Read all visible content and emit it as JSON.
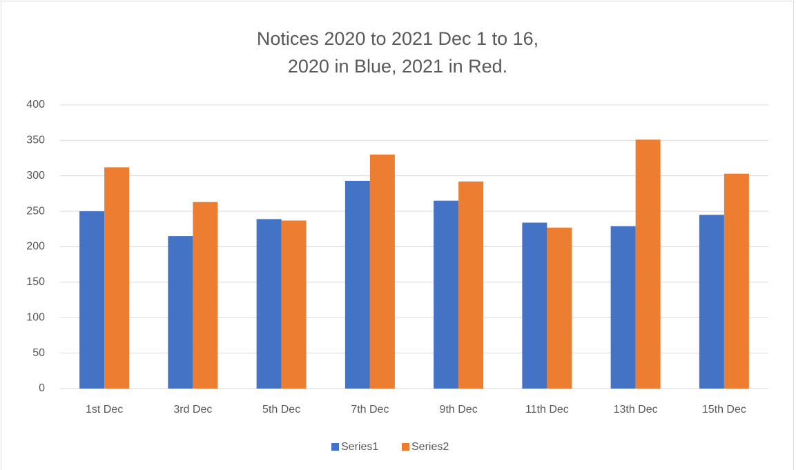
{
  "chart_data": {
    "type": "bar",
    "title": [
      "Notices 2020 to 2021 Dec 1 to 16,",
      "2020 in Blue, 2021 in Red."
    ],
    "categories": [
      "1st Dec",
      "3rd Dec",
      "5th Dec",
      "7th Dec",
      "9th Dec",
      "11th Dec",
      "13th Dec",
      "15th Dec"
    ],
    "series": [
      {
        "name": "Series1",
        "color": "#4472c4",
        "values": [
          250,
          215,
          239,
          293,
          265,
          234,
          229,
          245
        ]
      },
      {
        "name": "Series2",
        "color": "#ed7d31",
        "values": [
          312,
          263,
          237,
          330,
          292,
          227,
          351,
          303
        ]
      }
    ],
    "ylim": [
      0,
      400
    ],
    "yticks": [
      0,
      50,
      100,
      150,
      200,
      250,
      300,
      350,
      400
    ],
    "grid": true,
    "legend": "bottom"
  }
}
